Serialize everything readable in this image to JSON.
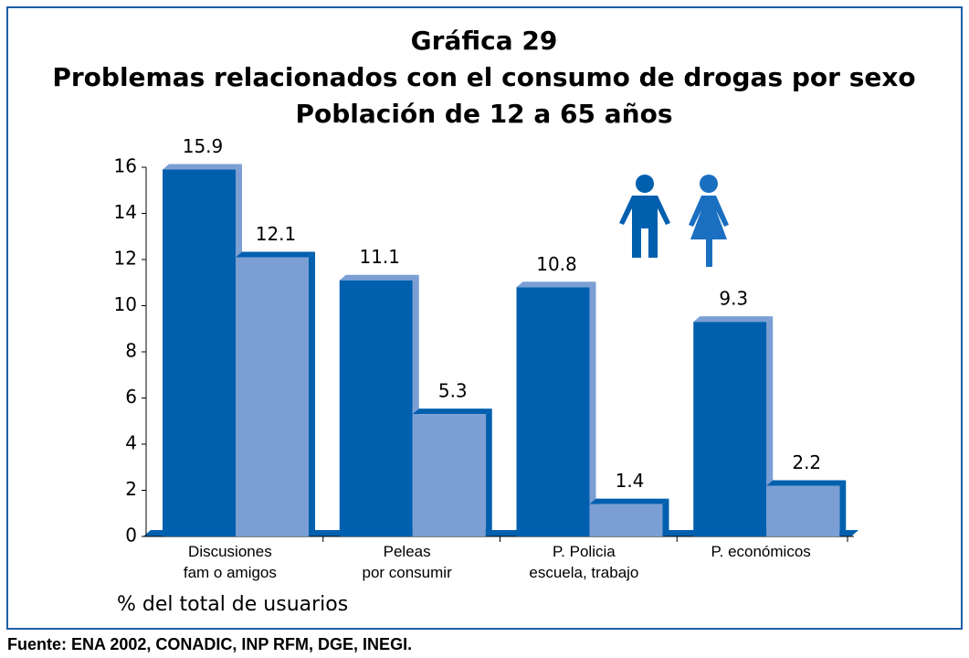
{
  "chart_data": {
    "type": "bar",
    "title": [
      "Gráfica 29",
      "Problemas relacionados con el consumo de drogas por sexo",
      "Población de 12 a 65 años"
    ],
    "categories": [
      "Discusiones\nfam o amigos",
      "Peleas\npor consumir",
      "P. Policia\nescuela, trabajo",
      "P. económicos"
    ],
    "series": [
      {
        "color": "#0060ae",
        "values": [
          15.9,
          11.1,
          10.8,
          9.3
        ]
      },
      {
        "color": "#7b9fd4",
        "values": [
          12.1,
          5.3,
          1.4,
          2.2
        ]
      }
    ],
    "ylim": [
      0,
      16
    ],
    "yticks": [
      0,
      2,
      4,
      6,
      8,
      10,
      12,
      14,
      16
    ],
    "ylabel": "% del total de usuarios",
    "source": "Fuente: ENA 2002, CONADIC, INP RFM, DGE, INEGI."
  }
}
